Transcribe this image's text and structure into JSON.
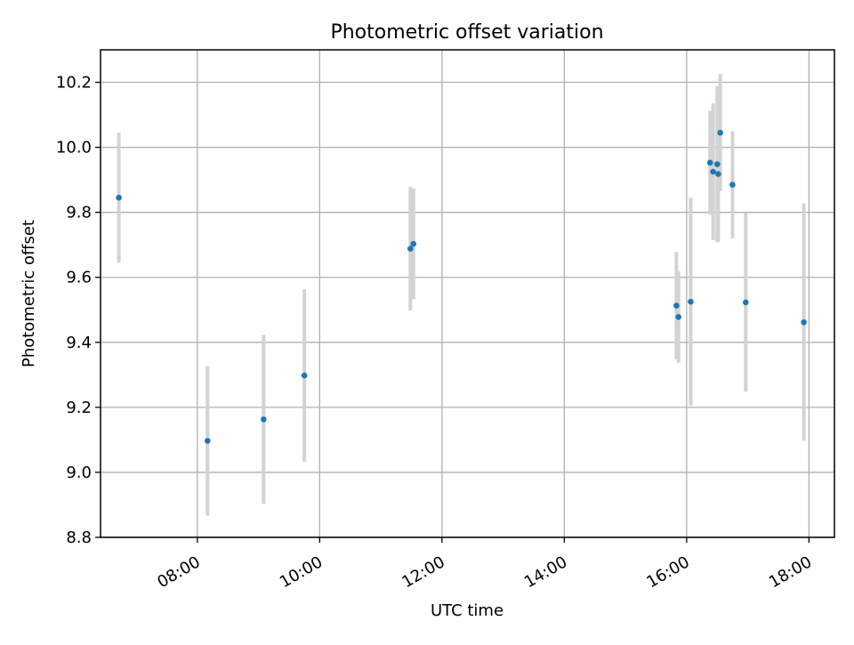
{
  "chart_data": {
    "type": "scatter",
    "title": "Photometric offset variation",
    "xlabel": "UTC time",
    "ylabel": "Photometric offset",
    "xlim": [
      "06:25",
      "18:25"
    ],
    "ylim": [
      8.8,
      10.3
    ],
    "grid": true,
    "x_ticks": [
      "08:00",
      "10:00",
      "12:00",
      "14:00",
      "16:00",
      "18:00"
    ],
    "y_ticks": [
      8.8,
      9.0,
      9.2,
      9.4,
      9.6,
      9.8,
      10.0,
      10.2
    ],
    "points": [
      {
        "x": "06:43",
        "y": 9.845,
        "err": 0.2
      },
      {
        "x": "08:10",
        "y": 9.097,
        "err": 0.23
      },
      {
        "x": "09:05",
        "y": 9.163,
        "err": 0.26
      },
      {
        "x": "09:45",
        "y": 9.298,
        "err": 0.265
      },
      {
        "x": "11:29",
        "y": 9.688,
        "err": 0.19
      },
      {
        "x": "11:32",
        "y": 9.703,
        "err": 0.17
      },
      {
        "x": "15:50",
        "y": 9.513,
        "err": 0.165
      },
      {
        "x": "15:52",
        "y": 9.478,
        "err": 0.14
      },
      {
        "x": "16:04",
        "y": 9.525,
        "err": 0.32
      },
      {
        "x": "16:23",
        "y": 9.953,
        "err": 0.16
      },
      {
        "x": "16:26",
        "y": 9.925,
        "err": 0.21
      },
      {
        "x": "16:30",
        "y": 9.948,
        "err": 0.24
      },
      {
        "x": "16:31",
        "y": 9.918,
        "err": 0.21
      },
      {
        "x": "16:33",
        "y": 10.045,
        "err": 0.18
      },
      {
        "x": "16:45",
        "y": 9.885,
        "err": 0.165
      },
      {
        "x": "16:58",
        "y": 9.523,
        "err": 0.275
      },
      {
        "x": "17:55",
        "y": 9.462,
        "err": 0.365
      }
    ],
    "point_color": "#1f77b4",
    "errorbar_color": "#d3d3d3",
    "grid_color": "#b0b0b0"
  }
}
